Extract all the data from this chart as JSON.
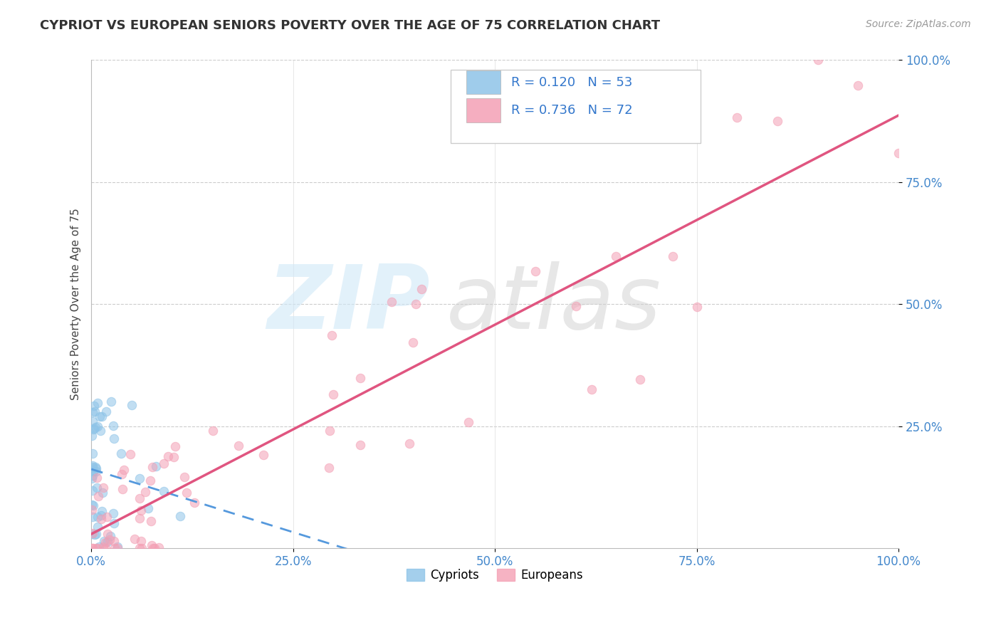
{
  "title": "CYPRIOT VS EUROPEAN SENIORS POVERTY OVER THE AGE OF 75 CORRELATION CHART",
  "source": "Source: ZipAtlas.com",
  "ylabel": "Seniors Poverty Over the Age of 75",
  "xlabel": "",
  "cypriot_R": 0.12,
  "cypriot_N": 53,
  "european_R": 0.736,
  "european_N": 72,
  "cypriot_color": "#8ec4e8",
  "european_color": "#f4a0b5",
  "cypriot_line_color": "#5599dd",
  "european_line_color": "#e05580",
  "background_color": "#ffffff",
  "grid_color": "#cccccc",
  "legend_labels": [
    "Cypriots",
    "Europeans"
  ],
  "xlim": [
    0,
    1
  ],
  "ylim": [
    0,
    1
  ],
  "xticks": [
    0,
    0.25,
    0.5,
    0.75,
    1.0
  ],
  "yticks": [
    0.25,
    0.5,
    0.75,
    1.0
  ],
  "xticklabels": [
    "0.0%",
    "25.0%",
    "50.0%",
    "75.0%",
    "100.0%"
  ],
  "yticklabels": [
    "25.0%",
    "50.0%",
    "75.0%",
    "100.0%"
  ],
  "title_fontsize": 13,
  "tick_fontsize": 12,
  "source_fontsize": 10
}
